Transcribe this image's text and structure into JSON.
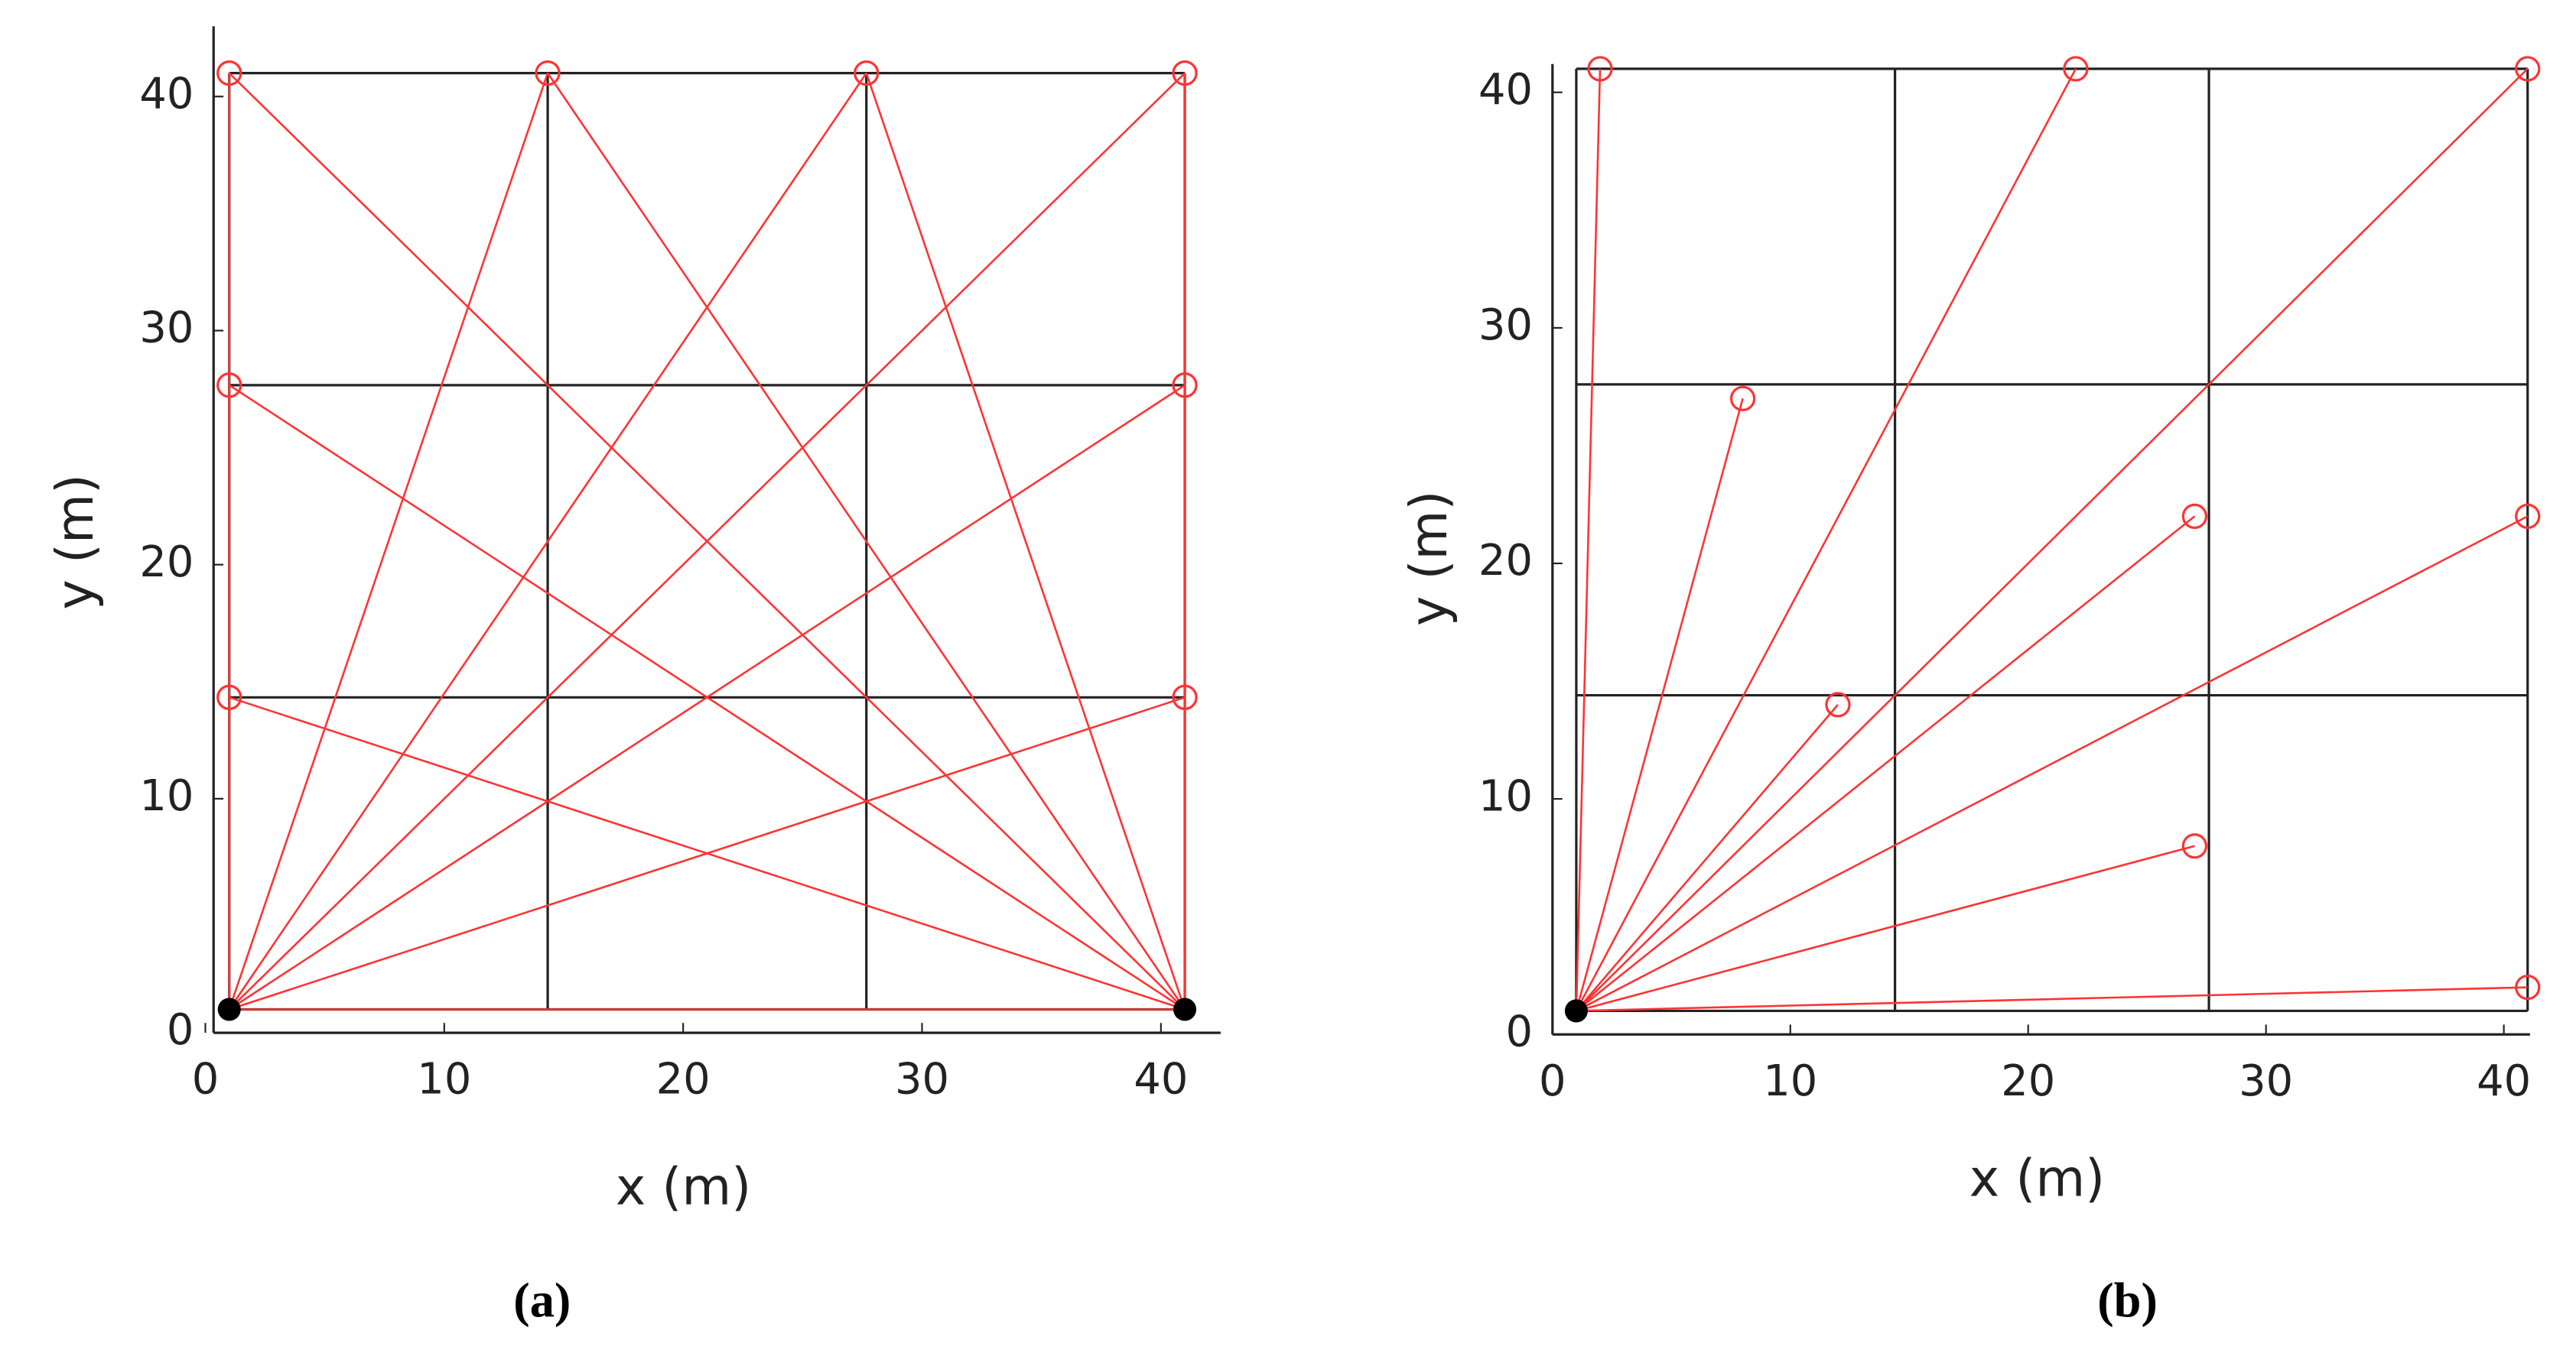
{
  "chart_data": [
    {
      "type": "scatter",
      "caption": "(a)",
      "xlabel": "x (m)",
      "ylabel": "y (m)",
      "xlim": [
        0,
        42.5
      ],
      "ylim": [
        0,
        43
      ],
      "xticks": [
        0,
        10,
        20,
        30,
        40
      ],
      "yticks": [
        0,
        10,
        20,
        30,
        40
      ],
      "walls_x": [
        1,
        14.33,
        27.67,
        41
      ],
      "walls_y": [
        1,
        14.33,
        27.67,
        41
      ],
      "wall_color": "#222222",
      "anchors": {
        "x": [
          1,
          41
        ],
        "y": [
          1,
          1
        ],
        "color": "#000000"
      },
      "targets": {
        "x": [
          1,
          1,
          1,
          14.33,
          27.67,
          41,
          41,
          41
        ],
        "y": [
          41,
          27.67,
          14.33,
          41,
          41,
          41,
          27.67,
          14.33
        ],
        "color": "#ff3333"
      }
    },
    {
      "type": "scatter",
      "caption": "(b)",
      "xlabel": "x (m)",
      "ylabel": "y (m)",
      "xlim": [
        0,
        41.1
      ],
      "ylim": [
        0,
        41.2
      ],
      "xticks": [
        0,
        10,
        20,
        30,
        40
      ],
      "yticks": [
        0,
        10,
        20,
        30,
        40
      ],
      "walls_x": [
        1,
        14.4,
        27.6,
        41
      ],
      "walls_y": [
        1,
        14.4,
        27.6,
        41
      ],
      "wall_color": "#222222",
      "anchors": {
        "x": [
          1
        ],
        "y": [
          1
        ],
        "color": "#000000"
      },
      "targets": {
        "x": [
          2,
          22,
          41,
          8,
          27,
          41,
          12,
          27,
          41
        ],
        "y": [
          41,
          41,
          41,
          27,
          22,
          22,
          14,
          8,
          2
        ],
        "color": "#ff3333"
      }
    }
  ]
}
